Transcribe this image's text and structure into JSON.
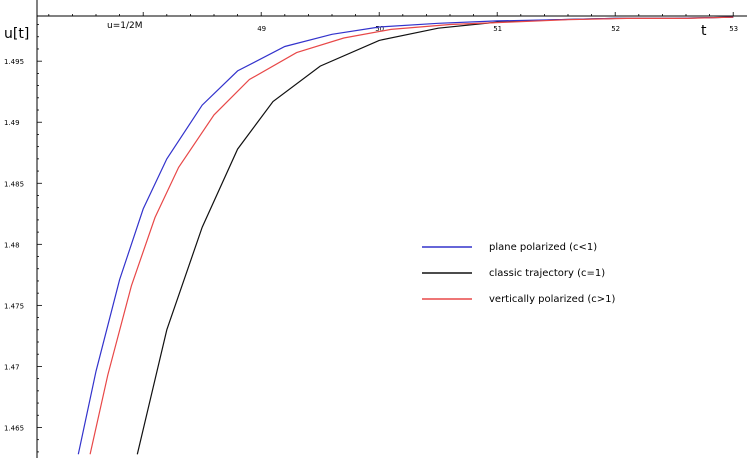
{
  "chart_data": {
    "type": "line",
    "xlabel": "t",
    "ylabel": "u[t]",
    "annotation": "u=1/2M",
    "xlim": [
      47.1,
      53.1
    ],
    "ylim": [
      1.4625,
      1.4987
    ],
    "x_ticks": [
      49,
      50,
      51,
      52,
      53
    ],
    "x_tick_labels": [
      "49",
      "50",
      "51",
      "52",
      "53"
    ],
    "y_ticks": [
      1.465,
      1.47,
      1.475,
      1.48,
      1.485,
      1.49,
      1.495
    ],
    "y_tick_labels": [
      "1.465",
      "1.47",
      "1.475",
      "1.48",
      "1.485",
      "1.49",
      "1.495"
    ],
    "grid": false,
    "legend_position": "right",
    "series": [
      {
        "name": "plane polarized (c<1)",
        "color": "#3333cc",
        "x": [
          47.45,
          47.6,
          47.8,
          48.0,
          48.2,
          48.5,
          48.8,
          49.2,
          49.6,
          50.0,
          50.5,
          51.0,
          51.5,
          52.0,
          52.5,
          53.0
        ],
        "y": [
          1.4628,
          1.4696,
          1.4771,
          1.4829,
          1.487,
          1.4914,
          1.4942,
          1.4962,
          1.4972,
          1.4978,
          1.4981,
          1.4983,
          1.4984,
          1.4985,
          1.4985,
          1.4986
        ]
      },
      {
        "name": "classic trajectory (c=1)",
        "color": "#111111",
        "x": [
          47.95,
          48.2,
          48.5,
          48.8,
          49.1,
          49.5,
          50.0,
          50.5,
          51.0,
          51.5,
          52.0,
          52.5,
          53.0
        ],
        "y": [
          1.4628,
          1.473,
          1.4814,
          1.4878,
          1.4917,
          1.4946,
          1.4967,
          1.4977,
          1.4982,
          1.4984,
          1.4985,
          1.4985,
          1.4986
        ]
      },
      {
        "name": "vertically polarized (c>1)",
        "color": "#e84848",
        "x": [
          47.55,
          47.7,
          47.9,
          48.1,
          48.3,
          48.6,
          48.9,
          49.3,
          49.7,
          50.1,
          50.6,
          51.1,
          51.6,
          52.1,
          52.6,
          53.0
        ],
        "y": [
          1.4628,
          1.4693,
          1.4766,
          1.4822,
          1.4863,
          1.4906,
          1.4935,
          1.4957,
          1.4969,
          1.4976,
          1.498,
          1.4982,
          1.4984,
          1.4985,
          1.4985,
          1.4986
        ]
      }
    ]
  }
}
